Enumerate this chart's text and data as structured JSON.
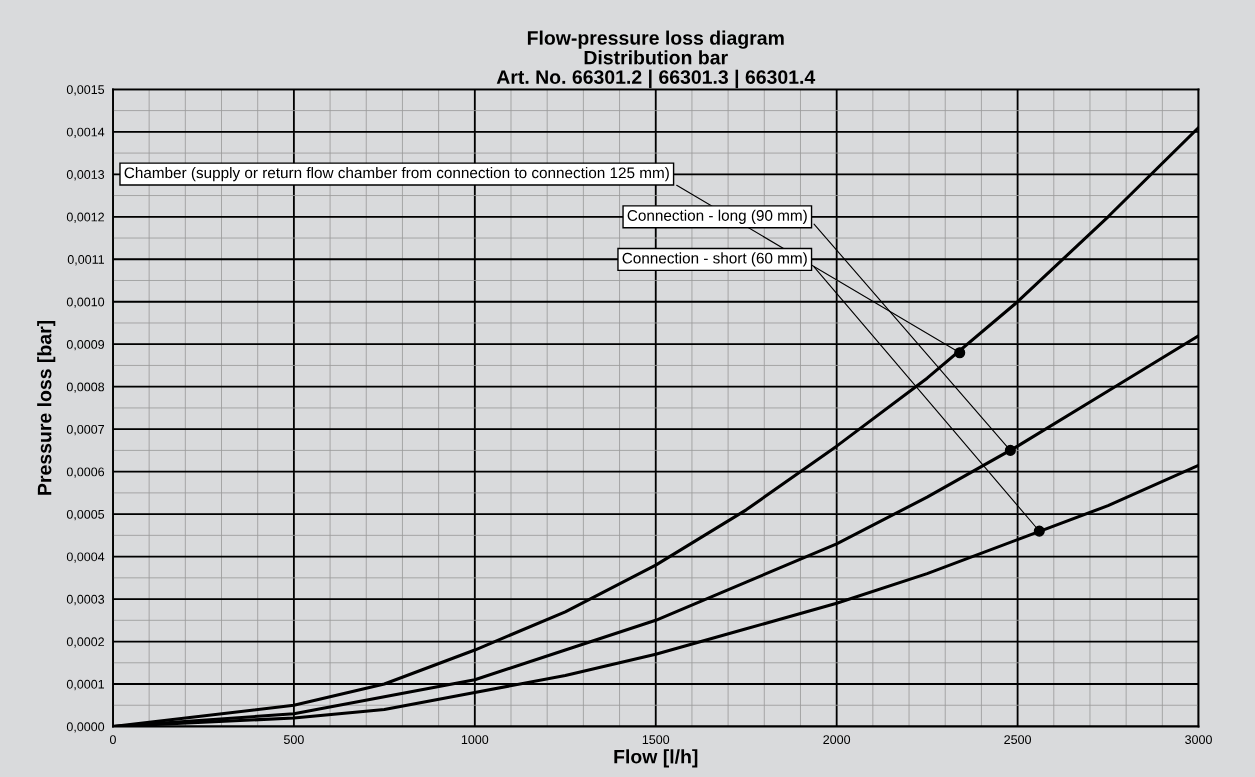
{
  "chart_data": {
    "type": "line",
    "title": "Flow-pressure loss diagram\nDistribution bar\nArt. No. 66301.2 | 66301.3 | 66301.4",
    "xlabel": "Flow [l/h]",
    "ylabel": "Pressure loss [bar]",
    "x": [
      0,
      500,
      750,
      1000,
      1250,
      1500,
      1750,
      2000,
      2250,
      2500,
      2750,
      3000
    ],
    "series": [
      {
        "color": "#000000",
        "values": [
          0,
          5e-05,
          0.0001,
          0.00018,
          0.00027,
          0.00038,
          0.00051,
          0.00066,
          0.00082,
          0.001,
          0.0012,
          0.00141
        ]
      },
      {
        "color": "#000000",
        "values": [
          0,
          3e-05,
          7e-05,
          0.00011,
          0.00018,
          0.00025,
          0.00034,
          0.00043,
          0.00054,
          0.00066,
          0.00079,
          0.00092
        ]
      },
      {
        "color": "#000000",
        "values": [
          0,
          2e-05,
          4e-05,
          8e-05,
          0.00012,
          0.00017,
          0.00023,
          0.00029,
          0.00036,
          0.00044,
          0.00052,
          0.000615
        ]
      }
    ],
    "annotations": [
      {
        "text": "Chamber (supply or return flow chamber from connection to connection 125 mm)",
        "x": 2340,
        "y": 0.00088
      },
      {
        "text": "Connection - long (90 mm)",
        "x": 2480,
        "y": 0.00065
      },
      {
        "text": "Connection - short (60 mm)",
        "x": 2560,
        "y": 0.00046
      }
    ],
    "xlim": [
      0,
      3000
    ],
    "xticks": [
      0,
      500,
      1000,
      1500,
      2000,
      2500,
      3000
    ],
    "ylim": [
      0,
      0.0015
    ],
    "yticks": [
      {
        "value": 0,
        "label": "0,0000"
      },
      {
        "value": 0.0001,
        "label": "0,0001"
      },
      {
        "value": 0.0002,
        "label": "0,0002"
      },
      {
        "value": 0.0003,
        "label": "0,0003"
      },
      {
        "value": 0.0004,
        "label": "0,0004"
      },
      {
        "value": 0.0005,
        "label": "0,0005"
      },
      {
        "value": 0.0006,
        "label": "0,0006"
      },
      {
        "value": 0.0007,
        "label": "0,0007"
      },
      {
        "value": 0.0008,
        "label": "0,0008"
      },
      {
        "value": 0.0009,
        "label": "0,0009"
      },
      {
        "value": 0.001,
        "label": "0,0010"
      },
      {
        "value": 0.0011,
        "label": "0,0011"
      },
      {
        "value": 0.0012,
        "label": "0,0012"
      },
      {
        "value": 0.0013,
        "label": "0,0013"
      },
      {
        "value": 0.0014,
        "label": "0,0014"
      },
      {
        "value": 0.0015,
        "label": "0,0015"
      }
    ],
    "grid": true,
    "marker": "none",
    "line_style": "solid"
  }
}
